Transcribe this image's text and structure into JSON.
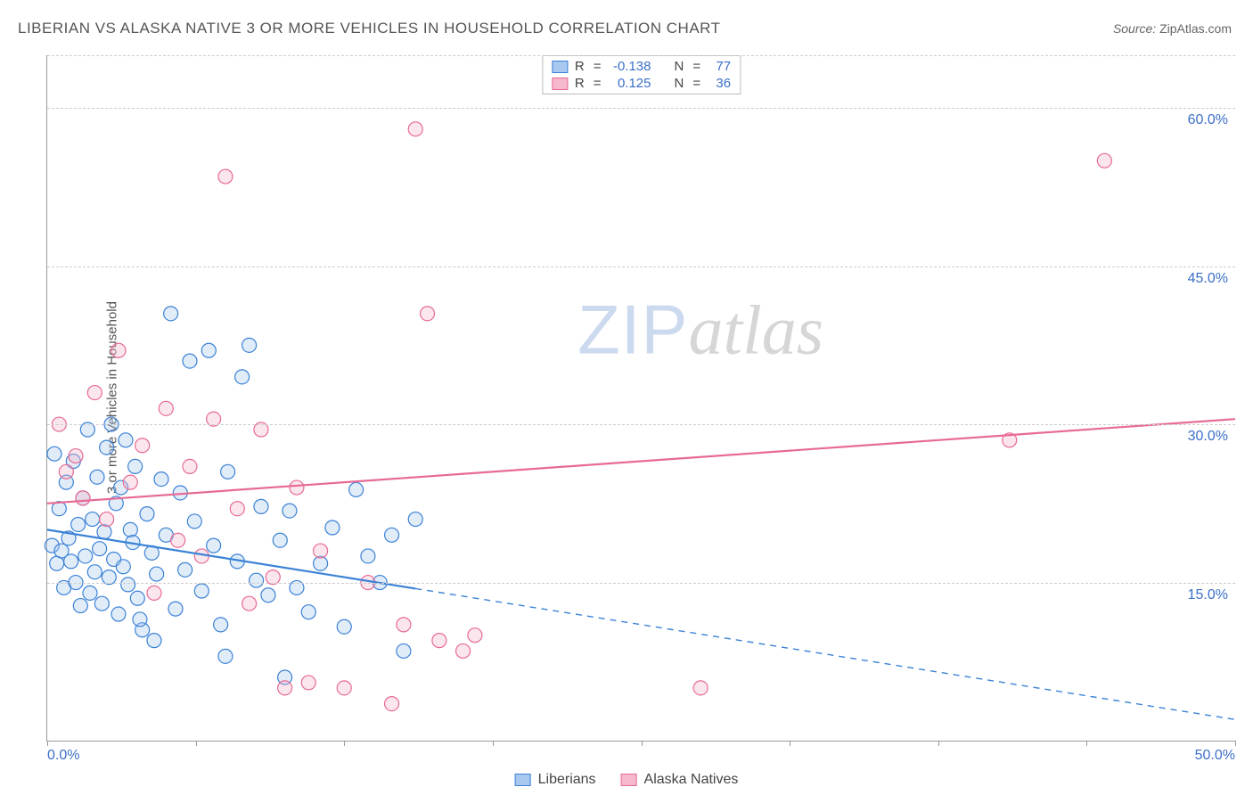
{
  "title": "LIBERIAN VS ALASKA NATIVE 3 OR MORE VEHICLES IN HOUSEHOLD CORRELATION CHART",
  "source_label": "Source:",
  "source_value": "ZipAtlas.com",
  "ylabel": "3 or more Vehicles in Household",
  "watermark_a": "ZIP",
  "watermark_b": "atlas",
  "chart": {
    "type": "scatter",
    "background_color": "#ffffff",
    "grid_color": "#cccccc",
    "axis_color": "#999999",
    "tick_label_color": "#3b6fc9",
    "x_range": [
      0,
      50
    ],
    "y_range": [
      0,
      65
    ],
    "y_grid_values": [
      15,
      30,
      45,
      60,
      65
    ],
    "y_tick_labels": {
      "15": "15.0%",
      "30": "30.0%",
      "45": "45.0%",
      "60": "60.0%"
    },
    "x_tick_positions": [
      0,
      6.25,
      12.5,
      18.75,
      25,
      31.25,
      37.5,
      43.75,
      50
    ],
    "x_tick_labels": {
      "0": "0.0%",
      "50": "50.0%"
    },
    "marker_radius": 8,
    "marker_stroke_width": 1.2,
    "marker_fill_opacity": 0.35,
    "line_width": 2.2,
    "series": [
      {
        "name": "Liberians",
        "color_stroke": "#3b82d6",
        "color_fill": "#a8c8ef",
        "R": "-0.138",
        "N": "77",
        "trend": {
          "x0": 0,
          "y0": 20.0,
          "x1": 50,
          "y1": 2.0,
          "solid_until_x": 15.5
        },
        "points": [
          [
            0.2,
            18.5
          ],
          [
            0.3,
            27.2
          ],
          [
            0.4,
            16.8
          ],
          [
            0.5,
            22.0
          ],
          [
            0.6,
            18.0
          ],
          [
            0.7,
            14.5
          ],
          [
            0.8,
            24.5
          ],
          [
            0.9,
            19.2
          ],
          [
            1.0,
            17.0
          ],
          [
            1.1,
            26.5
          ],
          [
            1.2,
            15.0
          ],
          [
            1.3,
            20.5
          ],
          [
            1.4,
            12.8
          ],
          [
            1.5,
            23.0
          ],
          [
            1.6,
            17.5
          ],
          [
            1.7,
            29.5
          ],
          [
            1.8,
            14.0
          ],
          [
            1.9,
            21.0
          ],
          [
            2.0,
            16.0
          ],
          [
            2.1,
            25.0
          ],
          [
            2.2,
            18.2
          ],
          [
            2.3,
            13.0
          ],
          [
            2.4,
            19.8
          ],
          [
            2.5,
            27.8
          ],
          [
            2.6,
            15.5
          ],
          [
            2.7,
            30.0
          ],
          [
            2.8,
            17.2
          ],
          [
            2.9,
            22.5
          ],
          [
            3.0,
            12.0
          ],
          [
            3.1,
            24.0
          ],
          [
            3.2,
            16.5
          ],
          [
            3.3,
            28.5
          ],
          [
            3.4,
            14.8
          ],
          [
            3.5,
            20.0
          ],
          [
            3.6,
            18.8
          ],
          [
            3.7,
            26.0
          ],
          [
            3.8,
            13.5
          ],
          [
            4.0,
            10.5
          ],
          [
            4.2,
            21.5
          ],
          [
            4.4,
            17.8
          ],
          [
            4.6,
            15.8
          ],
          [
            4.8,
            24.8
          ],
          [
            5.0,
            19.5
          ],
          [
            5.2,
            40.5
          ],
          [
            5.4,
            12.5
          ],
          [
            5.6,
            23.5
          ],
          [
            5.8,
            16.2
          ],
          [
            6.0,
            36.0
          ],
          [
            6.2,
            20.8
          ],
          [
            6.5,
            14.2
          ],
          [
            6.8,
            37.0
          ],
          [
            7.0,
            18.5
          ],
          [
            7.3,
            11.0
          ],
          [
            7.6,
            25.5
          ],
          [
            8.0,
            17.0
          ],
          [
            8.2,
            34.5
          ],
          [
            8.5,
            37.5
          ],
          [
            8.8,
            15.2
          ],
          [
            9.0,
            22.2
          ],
          [
            9.3,
            13.8
          ],
          [
            9.8,
            19.0
          ],
          [
            10.2,
            21.8
          ],
          [
            10.5,
            14.5
          ],
          [
            11.0,
            12.2
          ],
          [
            11.5,
            16.8
          ],
          [
            12.0,
            20.2
          ],
          [
            12.5,
            10.8
          ],
          [
            13.0,
            23.8
          ],
          [
            13.5,
            17.5
          ],
          [
            14.0,
            15.0
          ],
          [
            14.5,
            19.5
          ],
          [
            15.0,
            8.5
          ],
          [
            15.5,
            21.0
          ],
          [
            10.0,
            6.0
          ],
          [
            7.5,
            8.0
          ],
          [
            4.5,
            9.5
          ],
          [
            3.9,
            11.5
          ]
        ]
      },
      {
        "name": "Alaska Natives",
        "color_stroke": "#e76a94",
        "color_fill": "#f5b8cc",
        "R": "0.125",
        "N": "36",
        "trend": {
          "x0": 0,
          "y0": 22.5,
          "x1": 50,
          "y1": 30.5,
          "solid_until_x": 50
        },
        "points": [
          [
            0.5,
            30.0
          ],
          [
            0.8,
            25.5
          ],
          [
            1.2,
            27.0
          ],
          [
            1.5,
            23.0
          ],
          [
            2.0,
            33.0
          ],
          [
            2.5,
            21.0
          ],
          [
            3.0,
            37.0
          ],
          [
            3.5,
            24.5
          ],
          [
            4.0,
            28.0
          ],
          [
            4.5,
            14.0
          ],
          [
            5.0,
            31.5
          ],
          [
            5.5,
            19.0
          ],
          [
            6.0,
            26.0
          ],
          [
            6.5,
            17.5
          ],
          [
            7.0,
            30.5
          ],
          [
            7.5,
            53.5
          ],
          [
            8.0,
            22.0
          ],
          [
            8.5,
            13.0
          ],
          [
            9.0,
            29.5
          ],
          [
            9.5,
            15.5
          ],
          [
            10.0,
            5.0
          ],
          [
            10.5,
            24.0
          ],
          [
            11.0,
            5.5
          ],
          [
            11.5,
            18.0
          ],
          [
            12.5,
            5.0
          ],
          [
            13.5,
            15.0
          ],
          [
            14.5,
            3.5
          ],
          [
            15.0,
            11.0
          ],
          [
            15.5,
            58.0
          ],
          [
            16.0,
            40.5
          ],
          [
            16.5,
            9.5
          ],
          [
            17.5,
            8.5
          ],
          [
            27.5,
            5.0
          ],
          [
            40.5,
            28.5
          ],
          [
            44.5,
            55.0
          ],
          [
            18.0,
            10.0
          ]
        ]
      }
    ]
  },
  "correlation_legend_labels": {
    "R": "R",
    "eq": "=",
    "N": "N"
  },
  "bottom_legend": [
    {
      "swatch_fill": "#a8c8ef",
      "swatch_stroke": "#3b82d6",
      "label": "Liberians"
    },
    {
      "swatch_fill": "#f5b8cc",
      "swatch_stroke": "#e76a94",
      "label": "Alaska Natives"
    }
  ]
}
